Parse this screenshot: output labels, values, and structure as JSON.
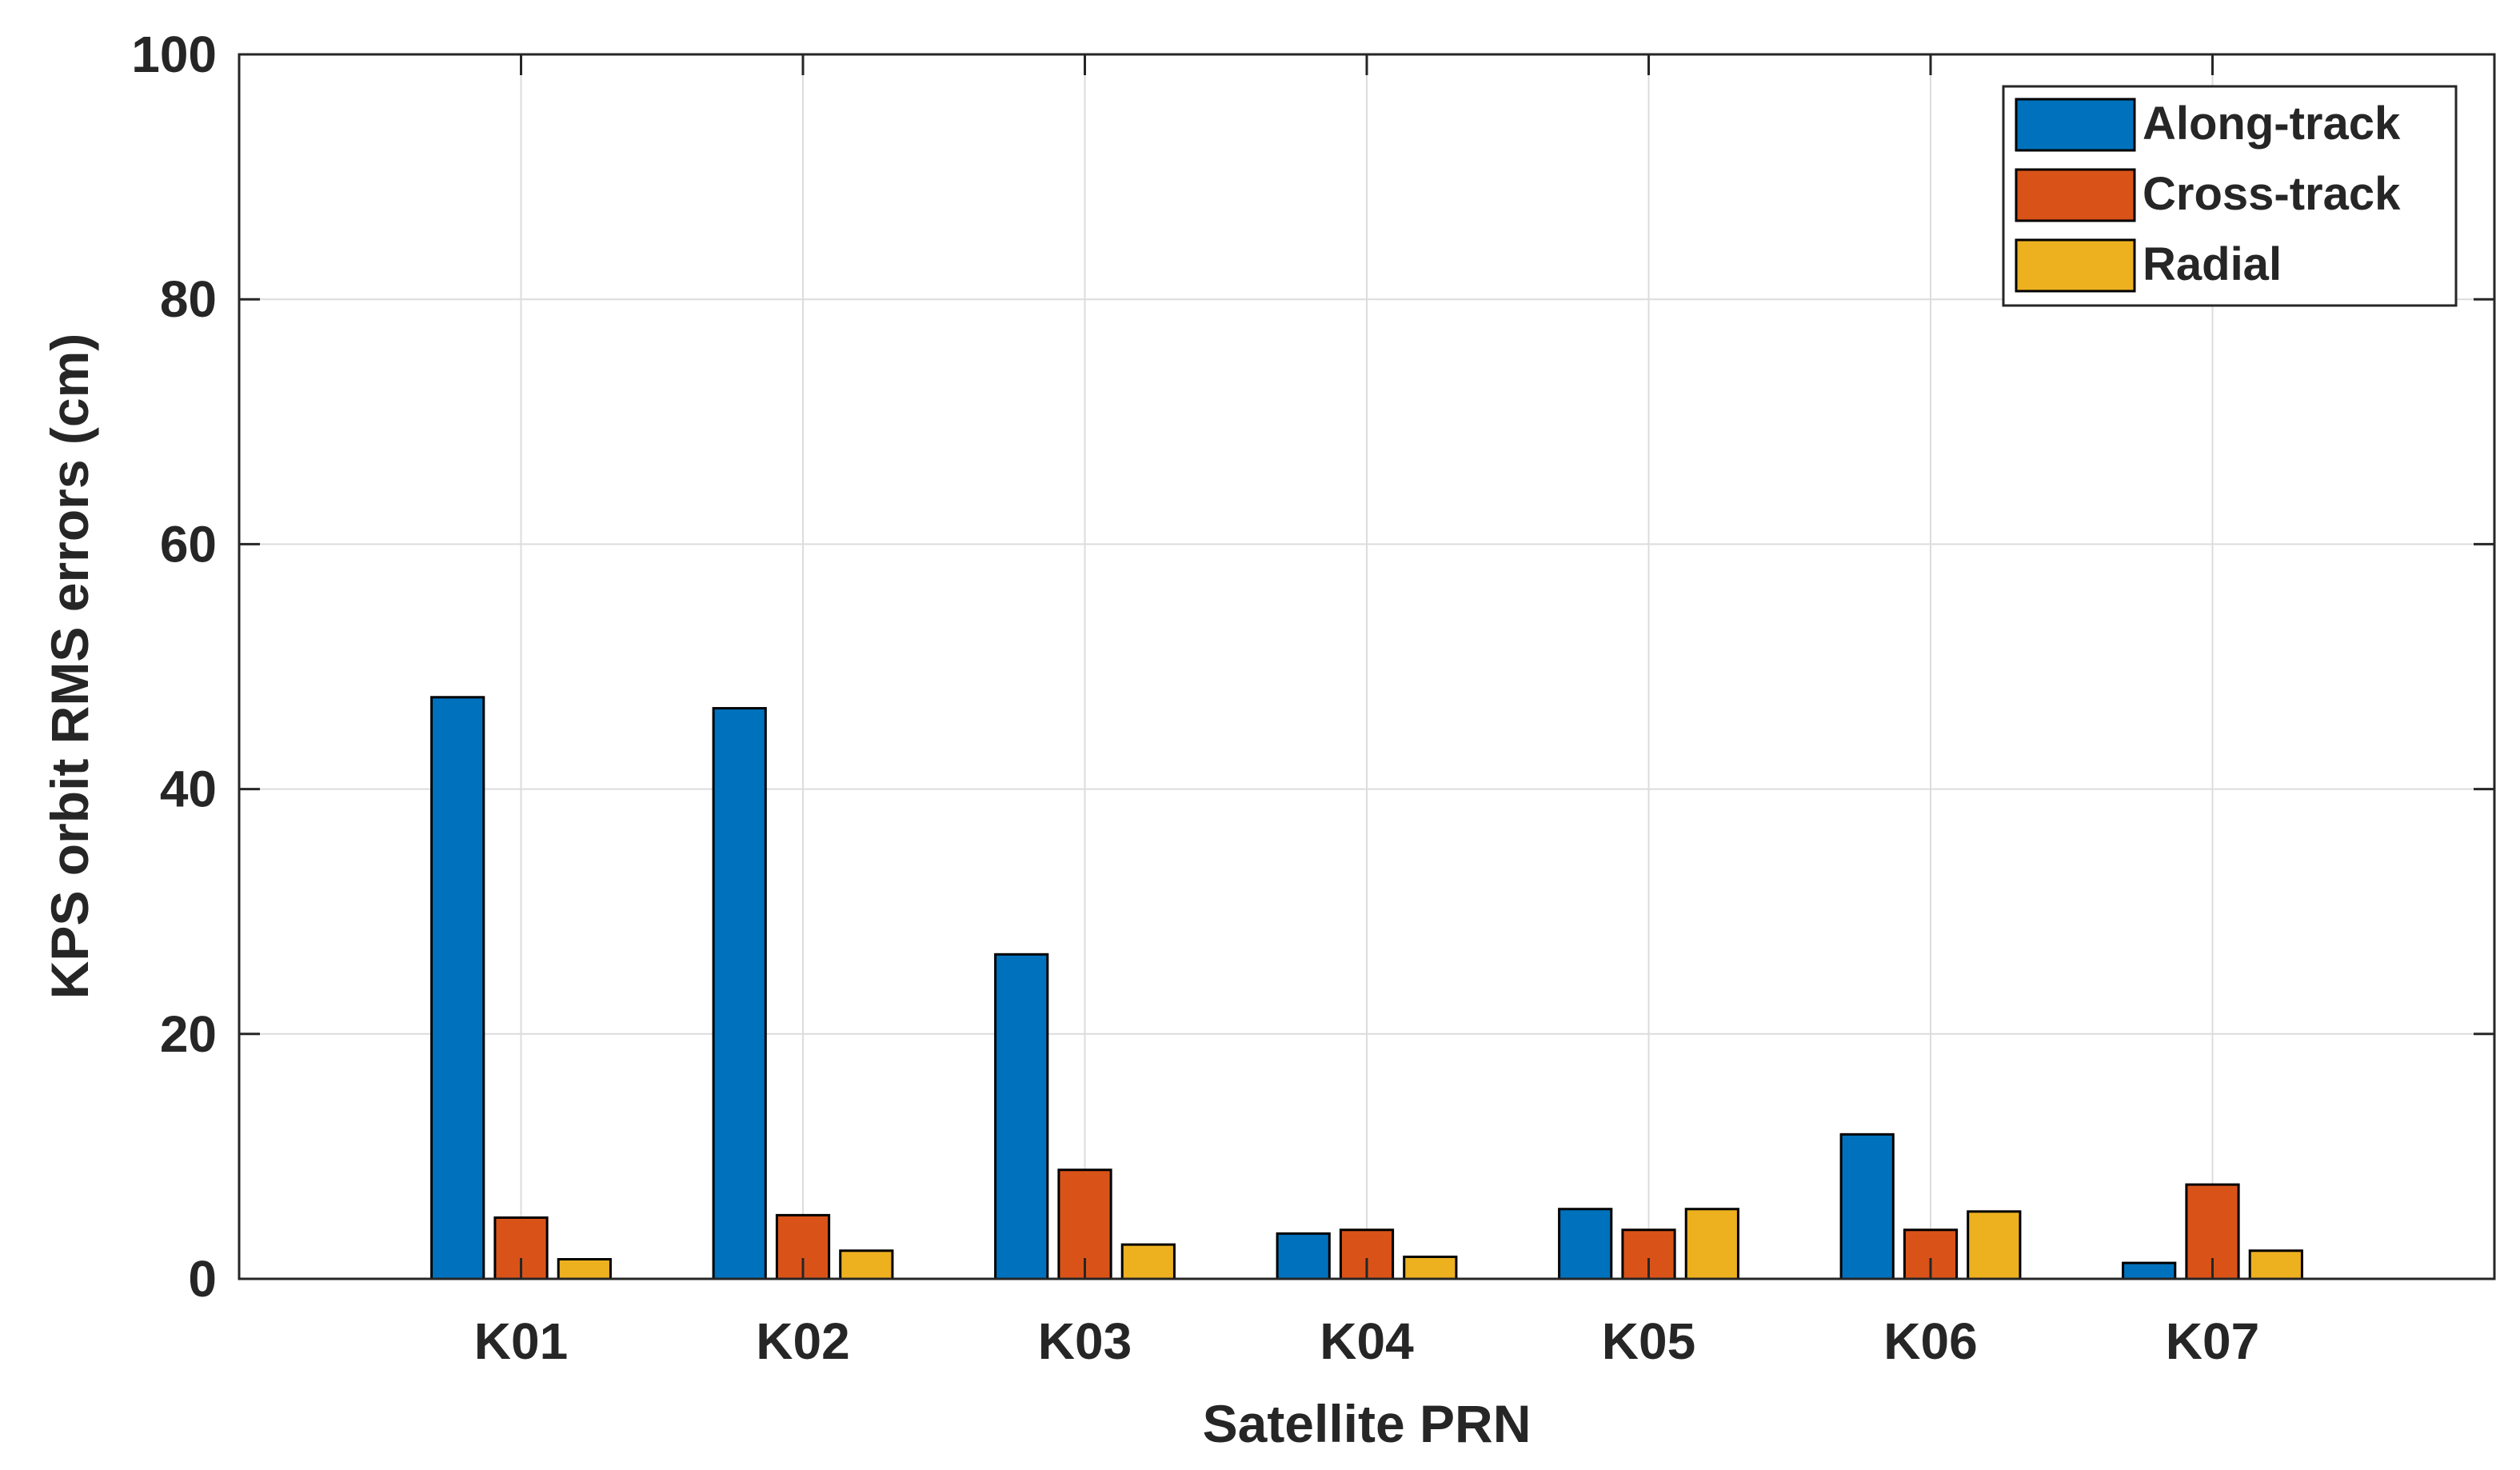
{
  "chart_data": {
    "type": "bar",
    "xlabel": "Satellite PRN",
    "ylabel": "KPS orbit RMS errors (cm)",
    "categories": [
      "K01",
      "K02",
      "K03",
      "K04",
      "K05",
      "K06",
      "K07"
    ],
    "ylim": [
      0,
      100
    ],
    "yticks": [
      0,
      20,
      40,
      60,
      80,
      100
    ],
    "ytick_labels": [
      "0",
      "20",
      "40",
      "60",
      "80",
      "100"
    ],
    "grid": true,
    "legend_position": "top-right",
    "series": [
      {
        "name": "Along-track",
        "color": "#0072BD",
        "values": [
          47.5,
          46.6,
          26.5,
          3.7,
          5.7,
          11.8,
          1.3
        ]
      },
      {
        "name": "Cross-track",
        "color": "#D95319",
        "values": [
          5.0,
          5.2,
          8.9,
          4.0,
          4.0,
          4.0,
          7.7
        ]
      },
      {
        "name": "Radial",
        "color": "#EDB120",
        "values": [
          1.6,
          2.3,
          2.8,
          1.8,
          5.7,
          5.5,
          2.3
        ]
      }
    ]
  }
}
